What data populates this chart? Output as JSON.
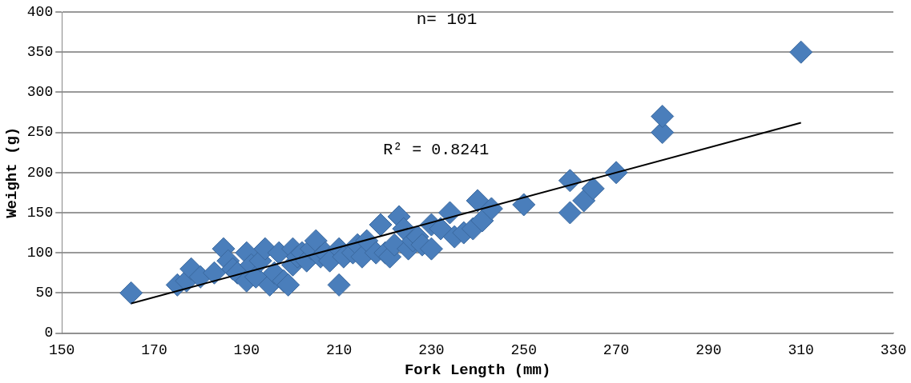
{
  "chart_data": {
    "type": "scatter",
    "title": "n= 101",
    "xlabel": "Fork Length (mm)",
    "ylabel": "Weight (g)",
    "xlim": [
      150,
      330
    ],
    "xticks": [
      150,
      170,
      190,
      210,
      230,
      250,
      270,
      290,
      310,
      330
    ],
    "ylim": [
      0,
      400
    ],
    "yticks": [
      0,
      50,
      100,
      150,
      200,
      250,
      300,
      350,
      400
    ],
    "grid": "y",
    "legend": false,
    "annotations": [
      "R² = 0.8241"
    ],
    "series": [
      {
        "marker": "diamond",
        "color": "#4a7ebb",
        "x": [
          165,
          175,
          177,
          178,
          180,
          183,
          185,
          186,
          187,
          188,
          190,
          190,
          191,
          192,
          193,
          194,
          195,
          196,
          197,
          198,
          199,
          200,
          200,
          201,
          202,
          203,
          204,
          205,
          206,
          207,
          208,
          210,
          210,
          211,
          213,
          214,
          215,
          216,
          218,
          219,
          220,
          221,
          222,
          223,
          224,
          225,
          226,
          227,
          228,
          230,
          230,
          232,
          234,
          235,
          237,
          239,
          240,
          241,
          243,
          250,
          260,
          260,
          263,
          265,
          270,
          280,
          280,
          310
        ],
        "values": [
          50,
          60,
          65,
          80,
          70,
          75,
          105,
          90,
          80,
          75,
          100,
          65,
          85,
          70,
          90,
          105,
          60,
          75,
          100,
          65,
          60,
          105,
          85,
          95,
          100,
          90,
          105,
          115,
          95,
          100,
          90,
          105,
          60,
          95,
          100,
          110,
          95,
          115,
          100,
          135,
          100,
          95,
          110,
          145,
          130,
          105,
          115,
          120,
          110,
          105,
          135,
          130,
          150,
          120,
          125,
          130,
          165,
          140,
          155,
          160,
          190,
          150,
          165,
          180,
          200,
          250,
          270,
          350
        ]
      },
      {
        "type": "line",
        "marker": "none",
        "color": "#000000",
        "x": [
          165,
          310
        ],
        "values": [
          37,
          262
        ]
      }
    ]
  }
}
